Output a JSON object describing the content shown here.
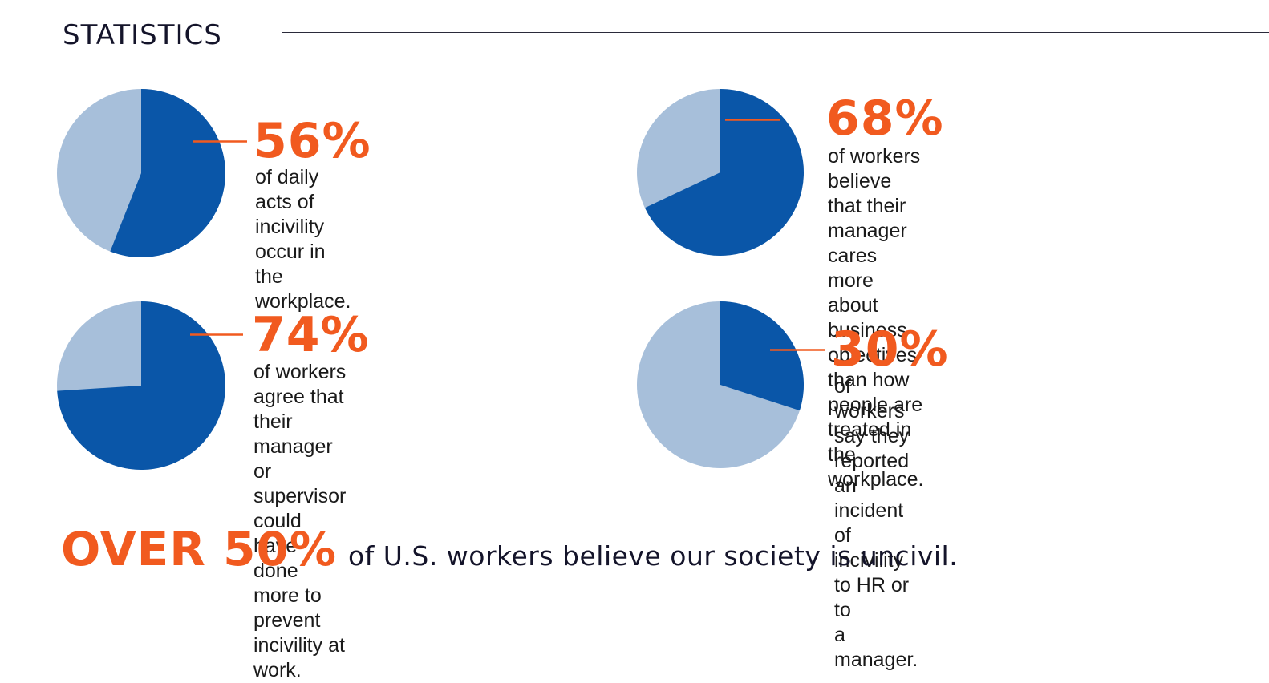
{
  "header": {
    "title": "STATISTICS"
  },
  "colors": {
    "accent": "#f15a1f",
    "pie_fill": "#0a56a8",
    "pie_rest": "#a7bfda",
    "text": "#1a1a1a",
    "navy": "#14142a"
  },
  "stats": [
    {
      "percent": "56%",
      "description": "of daily acts of incivility\noccur in the workplace."
    },
    {
      "percent": "68%",
      "description": "of workers believe that their\nmanager cares more about business\nobjectives than how people are\ntreated in the workplace."
    },
    {
      "percent": "74%",
      "description": "of workers agree that their\nmanager or supervisor\ncould have done more to\nprevent incivility at work."
    },
    {
      "percent": "30%",
      "description": "of workers say they reported an\nincident of incivility to HR or to\na manager."
    }
  ],
  "tagline": {
    "emphasis": "OVER 50%",
    "rest": "of U.S. workers believe our society is uncivil."
  },
  "chart_data": [
    {
      "type": "pie",
      "values": [
        56,
        44
      ],
      "title": "",
      "labels": [
        "56%",
        ""
      ]
    },
    {
      "type": "pie",
      "values": [
        68,
        32
      ],
      "title": "",
      "labels": [
        "68%",
        ""
      ]
    },
    {
      "type": "pie",
      "values": [
        74,
        26
      ],
      "title": "",
      "labels": [
        "74%",
        ""
      ]
    },
    {
      "type": "pie",
      "values": [
        30,
        70
      ],
      "title": "",
      "labels": [
        "30%",
        ""
      ]
    }
  ]
}
